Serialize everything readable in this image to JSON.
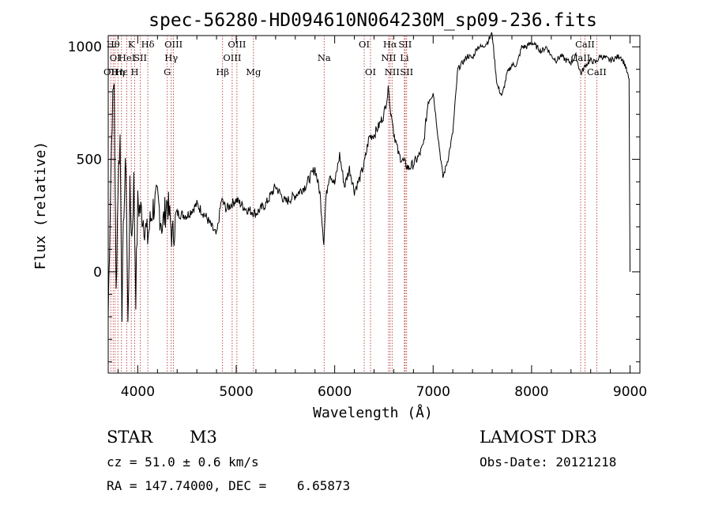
{
  "chart_data": {
    "type": "line",
    "title": "spec-56280-HD094610N064230M_sp09-236.fits",
    "xlabel": "Wavelength (Å)",
    "ylabel": "Flux (relative)",
    "xlim": [
      3700,
      9100
    ],
    "ylim": [
      -450,
      1050
    ],
    "x_ticks": [
      4000,
      5000,
      6000,
      7000,
      8000,
      9000
    ],
    "x_tick_labels": [
      "4000",
      "5000",
      "6000",
      "7000",
      "8000",
      "9000"
    ],
    "y_ticks": [
      0,
      500,
      1000
    ],
    "y_tick_labels": [
      "0",
      "500",
      "1000"
    ],
    "series": [
      {
        "name": "flux",
        "x": [
          3700,
          3720,
          3740,
          3760,
          3780,
          3800,
          3820,
          3840,
          3860,
          3880,
          3900,
          3920,
          3940,
          3960,
          3980,
          4000,
          4050,
          4100,
          4150,
          4200,
          4250,
          4300,
          4350,
          4400,
          4500,
          4600,
          4700,
          4800,
          4850,
          4900,
          5000,
          5100,
          5200,
          5300,
          5400,
          5500,
          5600,
          5700,
          5800,
          5850,
          5890,
          5910,
          5930,
          5950,
          6000,
          6050,
          6100,
          6150,
          6200,
          6250,
          6300,
          6350,
          6400,
          6450,
          6500,
          6550,
          6570,
          6580,
          6600,
          6650,
          6700,
          6750,
          6800,
          6850,
          6900,
          6950,
          7000,
          7050,
          7100,
          7150,
          7200,
          7250,
          7300,
          7350,
          7400,
          7450,
          7500,
          7550,
          7600,
          7620,
          7650,
          7700,
          7750,
          7800,
          7850,
          7900,
          7950,
          8000,
          8050,
          8100,
          8150,
          8200,
          8250,
          8300,
          8350,
          8400,
          8450,
          8500,
          8550,
          8600,
          8650,
          8700,
          8750,
          8800,
          8850,
          8900,
          8950,
          8990,
          9000
        ],
        "y": [
          -200,
          300,
          700,
          850,
          -100,
          400,
          600,
          -150,
          300,
          500,
          -250,
          350,
          150,
          400,
          -100,
          300,
          250,
          150,
          280,
          320,
          200,
          320,
          150,
          260,
          250,
          300,
          240,
          160,
          320,
          280,
          320,
          280,
          260,
          300,
          380,
          310,
          340,
          380,
          460,
          350,
          130,
          320,
          390,
          440,
          390,
          520,
          380,
          460,
          360,
          410,
          480,
          600,
          610,
          650,
          700,
          820,
          690,
          700,
          620,
          520,
          490,
          460,
          480,
          510,
          560,
          760,
          800,
          600,
          420,
          500,
          620,
          900,
          930,
          960,
          950,
          1000,
          1000,
          1020,
          1060,
          960,
          830,
          780,
          880,
          920,
          920,
          1000,
          1000,
          1020,
          1000,
          980,
          1000,
          960,
          940,
          960,
          940,
          930,
          960,
          880,
          920,
          940,
          930,
          960,
          950,
          940,
          950,
          960,
          920,
          850,
          0
        ]
      }
    ],
    "spectral_lines": [
      {
        "wavelength": 3726,
        "label": "OII",
        "row": 2
      },
      {
        "wavelength": 3750,
        "label": "Hθ",
        "row": 0
      },
      {
        "wavelength": 3770,
        "label": "OI",
        "row": 1
      },
      {
        "wavelength": 3798,
        "label": "Hη",
        "row": 2
      },
      {
        "wavelength": 3835,
        "label": "Hε",
        "row": 2
      },
      {
        "wavelength": 3889,
        "label": "HeI",
        "row": 1
      },
      {
        "wavelength": 3934,
        "label": "K",
        "row": 0
      },
      {
        "wavelength": 3969,
        "label": "H",
        "row": 2
      },
      {
        "wavelength": 4026,
        "label": "SII",
        "row": 1
      },
      {
        "wavelength": 4102,
        "label": "Hδ",
        "row": 0
      },
      {
        "wavelength": 4300,
        "label": "G",
        "row": 2
      },
      {
        "wavelength": 4340,
        "label": "Hγ",
        "row": 1
      },
      {
        "wavelength": 4363,
        "label": "OIII",
        "row": 0
      },
      {
        "wavelength": 4861,
        "label": "Hβ",
        "row": 2
      },
      {
        "wavelength": 4959,
        "label": "OIII",
        "row": 1
      },
      {
        "wavelength": 5007,
        "label": "OIII",
        "row": 0
      },
      {
        "wavelength": 5175,
        "label": "Mg",
        "row": 2
      },
      {
        "wavelength": 5893,
        "label": "Na",
        "row": 1
      },
      {
        "wavelength": 6300,
        "label": "OI",
        "row": 0
      },
      {
        "wavelength": 6364,
        "label": "OI",
        "row": 2
      },
      {
        "wavelength": 6548,
        "label": "NII",
        "row": 1
      },
      {
        "wavelength": 6563,
        "label": "Hα",
        "row": 0
      },
      {
        "wavelength": 6583,
        "label": "NII",
        "row": 2
      },
      {
        "wavelength": 6708,
        "label": "Li",
        "row": 1
      },
      {
        "wavelength": 6716,
        "label": "SII",
        "row": 0
      },
      {
        "wavelength": 6731,
        "label": "SII",
        "row": 2
      },
      {
        "wavelength": 8498,
        "label": "CaII",
        "row": 1
      },
      {
        "wavelength": 8542,
        "label": "CaII",
        "row": 0
      },
      {
        "wavelength": 8662,
        "label": "CaII",
        "row": 2
      }
    ]
  },
  "info": {
    "object_class": "STAR",
    "subclass": "M3",
    "survey": "LAMOST DR3",
    "redshift": "cz = 51.0 ± 0.6 km/s",
    "obs_date": "Obs-Date: 20121218",
    "coordinates": "RA = 147.74000, DEC =    6.65873"
  },
  "colors": {
    "line_marker": "#b02020",
    "spectrum": "#000000"
  }
}
